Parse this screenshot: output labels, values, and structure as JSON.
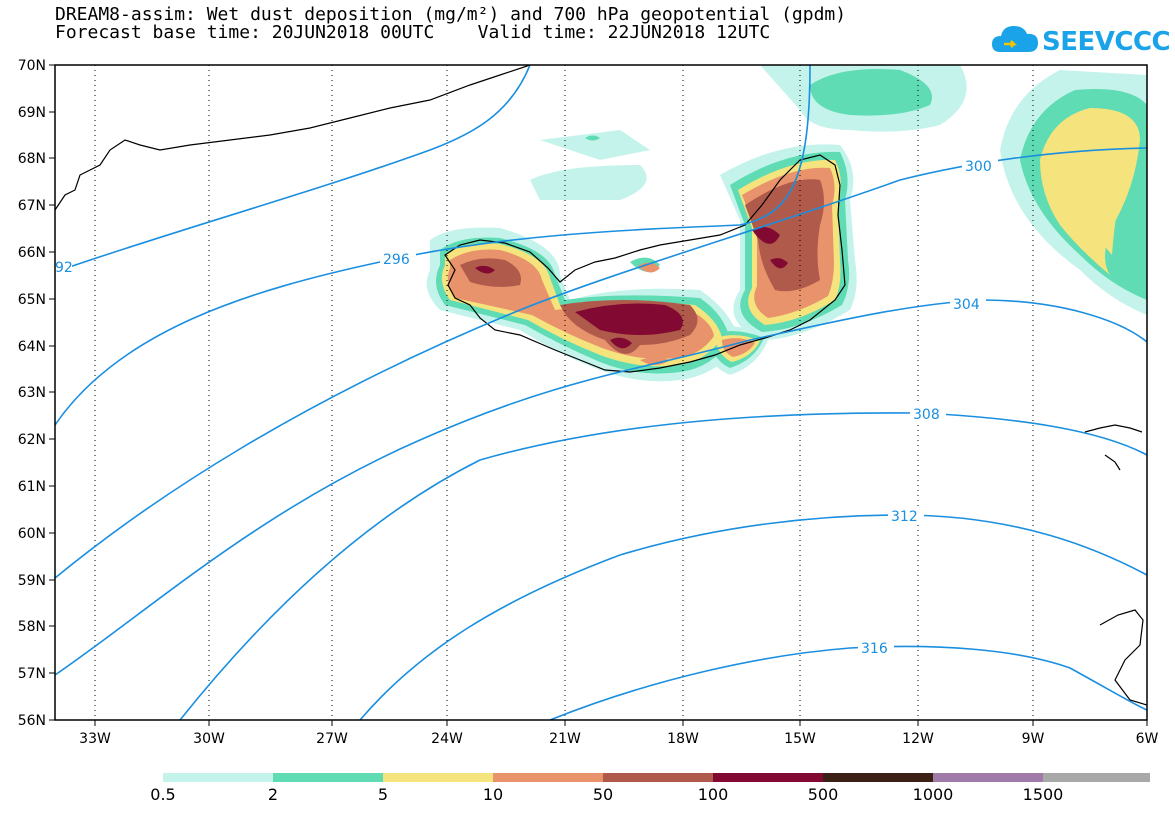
{
  "title_line1": "DREAM8-assim: Wet dust deposition (mg/m²) and 700 hPa geopotential (gpdm)",
  "title_line2": "Forecast base time: 20JUN2018 00UTC    Valid time: 22JUN2018 12UTC",
  "logo_text": "SEEVCCC",
  "map": {
    "lat_labels": [
      "70N",
      "69N",
      "68N",
      "67N",
      "66N",
      "65N",
      "64N",
      "63N",
      "62N",
      "61N",
      "60N",
      "59N",
      "58N",
      "57N",
      "56N"
    ],
    "lon_labels": [
      "33W",
      "30W",
      "27W",
      "24W",
      "21W",
      "18W",
      "15W",
      "12W",
      "9W",
      "6W"
    ],
    "contour_labels": [
      "92",
      "296",
      "300",
      "304",
      "308",
      "312",
      "316"
    ],
    "contour_color": "#1a8fe0"
  },
  "legend": {
    "colors": [
      "#c4f3ec",
      "#5fdcb3",
      "#f5e47d",
      "#e8936b",
      "#b05a4c",
      "#820a32",
      "#3b2016",
      "#a07aa8",
      "#a8a8a8"
    ],
    "labels": [
      "0.5",
      "2",
      "5",
      "10",
      "50",
      "100",
      "500",
      "1000",
      "1500"
    ]
  }
}
